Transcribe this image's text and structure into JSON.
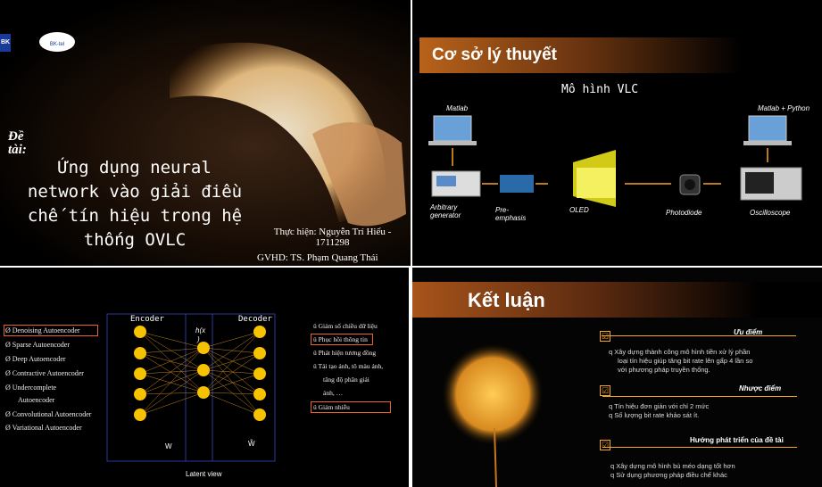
{
  "slide1": {
    "logo1": "BK",
    "logo2": "BK-tel",
    "de_tai": "Đề tài:",
    "title_lines": [
      "Ứng dụng neural",
      "network vào giải điều",
      "chế tín hiệu trong hệ",
      "thống OVLC"
    ],
    "thuc_hien": "Thực hiện: Nguyễn Trí Hiếu -",
    "student_id": "1711298",
    "gvhd": "GVHD: TS. Phạm Quang Thái"
  },
  "slide2": {
    "heading": "Cơ sở lý thuyết",
    "subtitle": "Mô hình VLC",
    "labels": {
      "matlab": "Matlab",
      "matlab_python": "Matlab + Python",
      "arbitrary": "Arbitrary",
      "generator": "generator",
      "pre": "Pre-",
      "emphasis": "emphasis",
      "oled": "OLED",
      "photodiode": "Photodiode",
      "oscilloscope": "Oscilloscope"
    }
  },
  "slide3": {
    "autoencoders": [
      "Ø Denoising Autoencoder",
      "Ø Sparse Autoencoder",
      "Ø Deep Autoencoder",
      "Ø Contractive Autoencoder",
      "Ø Undercomplete",
      "Autoencoder",
      "Ø Convolutional Autoencoder",
      "Ø Variational Autoencoder"
    ],
    "encoder": "Encoder",
    "decoder": "Decoder",
    "hx_top": "h(x",
    "hx_bot": ")",
    "w": "W",
    "w_tilde": "W̃",
    "latent": "Latent view",
    "uses": [
      "ü Giảm số chiều dữ liệu",
      "ü Phục hồi thông tin",
      "ü Phát hiện tương đồng",
      "ü Tái tạo ảnh, tô màu ảnh,",
      "tăng độ phân giải",
      "ảnh, …",
      "ü Giảm nhiễu"
    ]
  },
  "slide4": {
    "heading": "Kết luận",
    "check": "☑",
    "uu_diem": "Ưu điểm",
    "uu_text": [
      "q  Xây dựng thành công mô hình tiền xử lý phần",
      "loại tín hiệu giúp tăng bit rate lên gấp 4 lần so",
      "với phương pháp truyền thống."
    ],
    "nhuoc_diem": "Nhược điểm",
    "nhuoc_text": [
      "q  Tín hiệu đơn giản với chỉ 2 mức",
      "q  Số lượng bit rate khảo sát ít."
    ],
    "huong": "Hướng phát triển của đề tài",
    "huong_text": [
      "q  Xây dựng mô hình bù méo dạng tốt hơn",
      "q  Sử dụng phương pháp điều chế khác"
    ]
  },
  "colors": {
    "accent": "#f5a623",
    "outline": "#e8622a",
    "node": "#f7c300",
    "oled": "#eeee22"
  }
}
